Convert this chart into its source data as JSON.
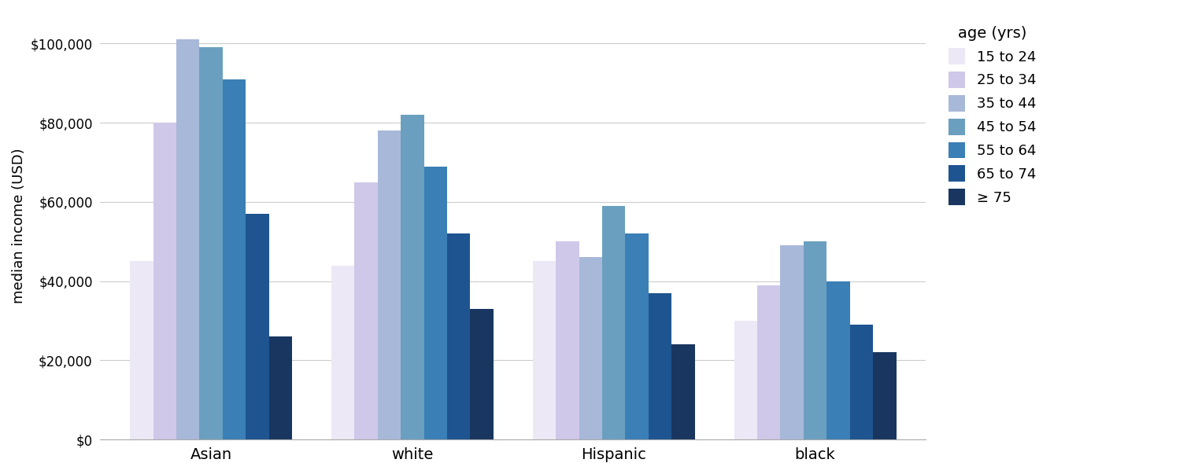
{
  "races": [
    "Asian",
    "white",
    "Hispanic",
    "black"
  ],
  "age_groups": [
    "15 to 24",
    "25 to 34",
    "35 to 44",
    "45 to 54",
    "55 to 64",
    "65 to 74",
    "≥ 75"
  ],
  "colors": [
    "#ede8f5",
    "#cfc8e8",
    "#a8b8d8",
    "#6b9fc0",
    "#3a7fb5",
    "#1e5490",
    "#183660"
  ],
  "data": {
    "Asian": [
      45000,
      80000,
      101000,
      99000,
      91000,
      57000,
      26000
    ],
    "white": [
      44000,
      65000,
      78000,
      82000,
      69000,
      52000,
      33000
    ],
    "Hispanic": [
      45000,
      50000,
      46000,
      59000,
      52000,
      37000,
      24000
    ],
    "black": [
      30000,
      39000,
      49000,
      50000,
      40000,
      29000,
      22000
    ]
  },
  "ylabel": "median income (USD)",
  "legend_title": "age (yrs)",
  "ylim": [
    0,
    108000
  ],
  "yticks": [
    0,
    20000,
    40000,
    60000,
    80000,
    100000
  ],
  "background_color": "#ffffff",
  "grid_color": "#cccccc"
}
